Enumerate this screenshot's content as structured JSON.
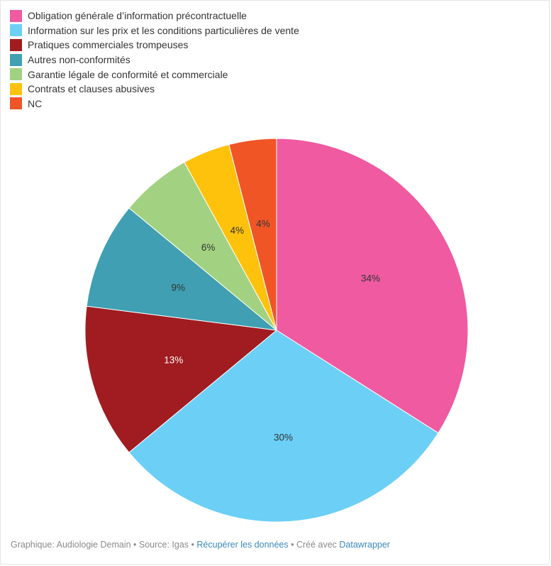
{
  "chart_data": {
    "type": "pie",
    "categories": [
      "Obligation générale d’information précontractuelle",
      "Information sur les prix et les conditions particulières de vente",
      "Pratiques commerciales trompeuses",
      "Autres non-conformités",
      "Garantie légale de conformité et commerciale",
      "Contrats et clauses abusives",
      "NC"
    ],
    "values": [
      34,
      30,
      13,
      9,
      6,
      4,
      4
    ],
    "labels": [
      "34%",
      "30%",
      "13%",
      "9%",
      "6%",
      "4%",
      "4%"
    ],
    "colors": [
      "#ef5aa1",
      "#6ccff6",
      "#a01c21",
      "#409fb2",
      "#a2d281",
      "#fec20d",
      "#f05526"
    ],
    "label_colors": [
      "#333333",
      "#333333",
      "#ffffff",
      "#333333",
      "#333333",
      "#333333",
      "#333333"
    ],
    "legend_position": "top-left",
    "title": "",
    "subtitle": ""
  },
  "footer": {
    "prefix": "Graphique: Audiologie Demain • Source: Igas • ",
    "link_data": "Récupérer les données",
    "middle": " • Créé avec ",
    "link_tool": "Datawrapper"
  }
}
